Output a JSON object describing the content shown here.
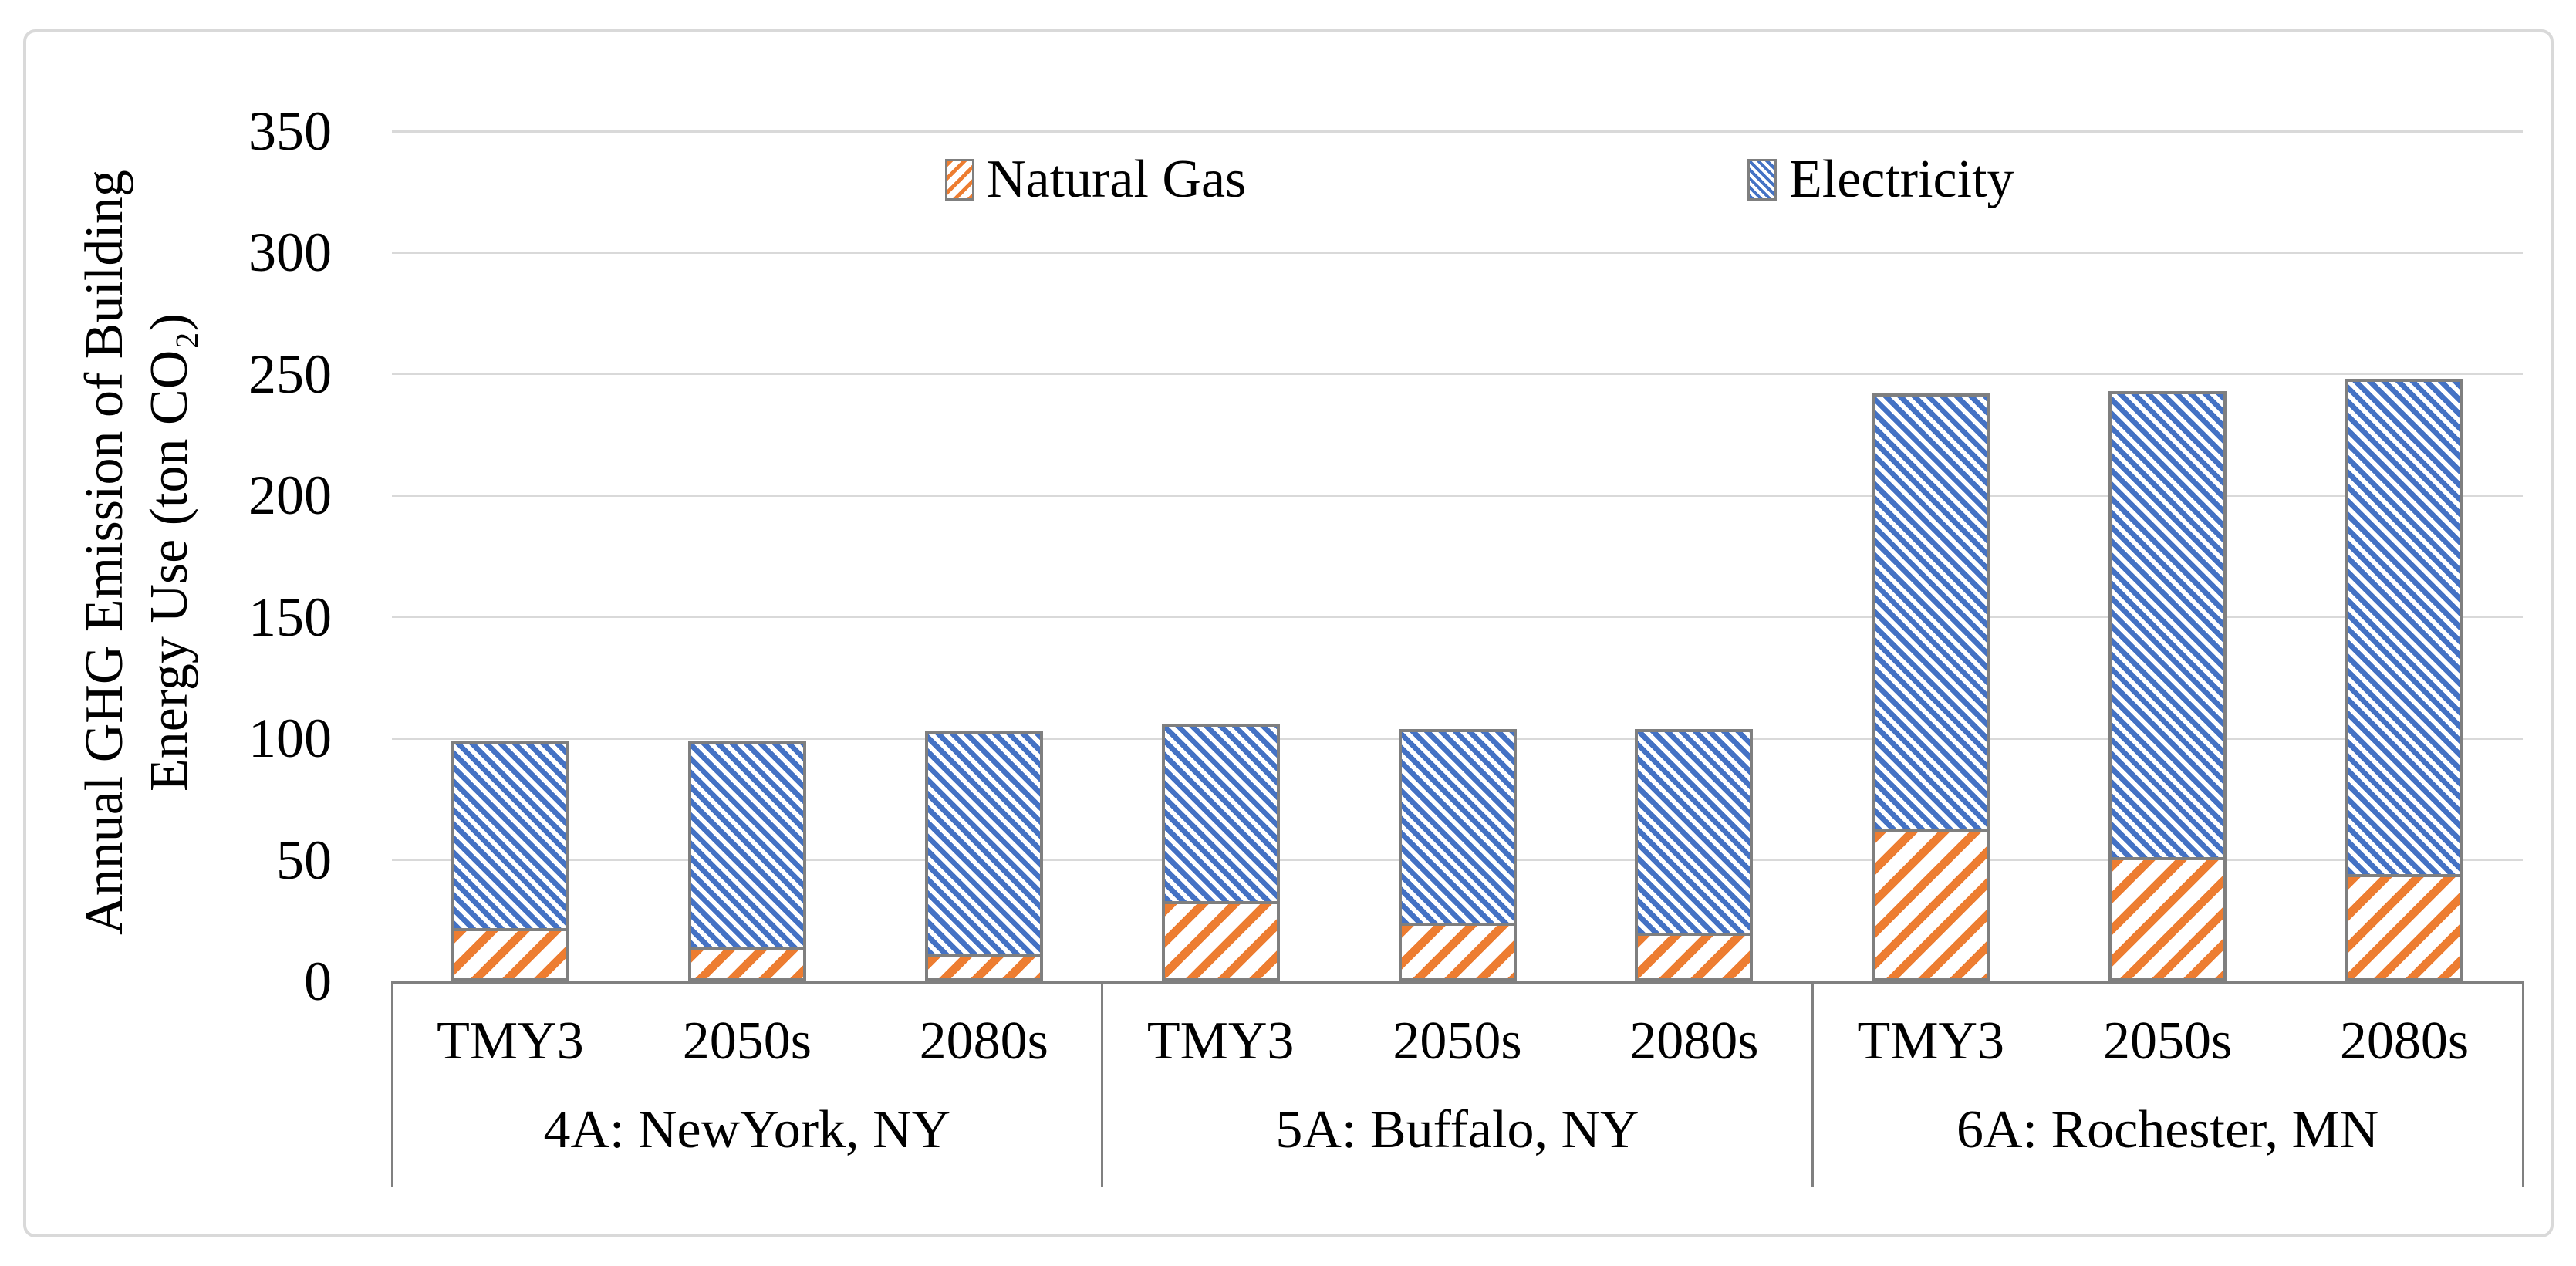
{
  "chart_data": {
    "type": "bar",
    "stacked": true,
    "title": "",
    "ylabel": "Annual GHG Emission of Building Energy Use (ton CO₂)",
    "ylabel_lines": [
      "Annual GHG Emission of Building",
      "Energy Use (ton CO₂)"
    ],
    "units": "ton CO₂",
    "ylim": [
      0,
      350
    ],
    "yticks": [
      0,
      50,
      100,
      150,
      200,
      250,
      300,
      350
    ],
    "grid": "horizontal",
    "legend_position": "top-inside",
    "groups": [
      {
        "label": "4A: NewYork, NY",
        "categories": [
          "TMY3",
          "2050s",
          "2080s"
        ]
      },
      {
        "label": "5A: Buffalo, NY",
        "categories": [
          "TMY3",
          "2050s",
          "2080s"
        ]
      },
      {
        "label": "6A: Rochester, MN",
        "categories": [
          "TMY3",
          "2050s",
          "2080s"
        ]
      }
    ],
    "series": [
      {
        "name": "Natural Gas",
        "color": "#ED7D31",
        "hatch": "\\",
        "values": [
          22,
          14,
          11,
          33,
          24,
          20,
          63,
          51,
          44
        ]
      },
      {
        "name": "Electricity",
        "color": "#4472C4",
        "hatch": "/",
        "values": [
          77,
          85,
          92,
          73,
          80,
          84,
          179,
          192,
          204
        ]
      }
    ]
  },
  "legend": [
    {
      "label": "Natural Gas"
    },
    {
      "label": "Electricity"
    }
  ],
  "colors": {
    "natural_gas": "#ED7D31",
    "electricity": "#4472C4",
    "bar_border": "#7F7F7F",
    "gridline": "#D9D9D9",
    "axis_line": "#808080",
    "frame_border": "#D9D9D9",
    "text": "#000000",
    "background": "#FFFFFF"
  }
}
